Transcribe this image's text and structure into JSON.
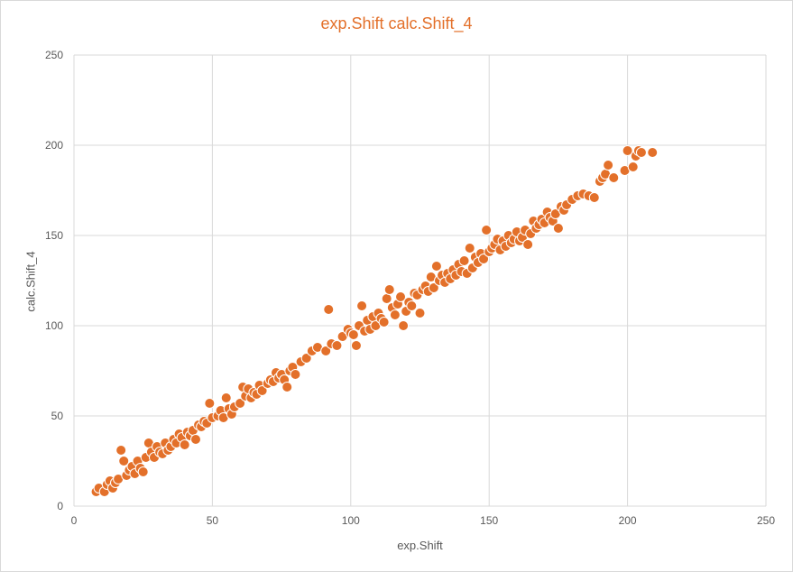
{
  "chart_data": {
    "type": "scatter",
    "title": "exp.Shift calc.Shift_4",
    "xlabel": "exp.Shift",
    "ylabel": "calc.Shift_4",
    "xlim": [
      0,
      250
    ],
    "ylim": [
      0,
      250
    ],
    "xticks": [
      "0",
      "50",
      "100",
      "150",
      "200",
      "250"
    ],
    "yticks": [
      "0",
      "50",
      "100",
      "150",
      "200",
      "250"
    ],
    "grid": true,
    "series": [
      {
        "color": "#e3702a",
        "points": [
          [
            8,
            8
          ],
          [
            9,
            10
          ],
          [
            11,
            8
          ],
          [
            12,
            12
          ],
          [
            13,
            14
          ],
          [
            14,
            10
          ],
          [
            15,
            13
          ],
          [
            16,
            15
          ],
          [
            17,
            31
          ],
          [
            18,
            25
          ],
          [
            19,
            17
          ],
          [
            20,
            20
          ],
          [
            21,
            22
          ],
          [
            22,
            18
          ],
          [
            23,
            25
          ],
          [
            24,
            21
          ],
          [
            25,
            19
          ],
          [
            26,
            27
          ],
          [
            27,
            35
          ],
          [
            28,
            30
          ],
          [
            29,
            27
          ],
          [
            30,
            33
          ],
          [
            31,
            30
          ],
          [
            32,
            29
          ],
          [
            33,
            35
          ],
          [
            34,
            31
          ],
          [
            35,
            33
          ],
          [
            36,
            37
          ],
          [
            37,
            35
          ],
          [
            38,
            40
          ],
          [
            39,
            38
          ],
          [
            40,
            34
          ],
          [
            41,
            41
          ],
          [
            42,
            39
          ],
          [
            43,
            42
          ],
          [
            44,
            37
          ],
          [
            45,
            45
          ],
          [
            46,
            44
          ],
          [
            47,
            47
          ],
          [
            48,
            46
          ],
          [
            49,
            57
          ],
          [
            50,
            49
          ],
          [
            52,
            50
          ],
          [
            53,
            53
          ],
          [
            54,
            49
          ],
          [
            55,
            60
          ],
          [
            56,
            54
          ],
          [
            57,
            51
          ],
          [
            58,
            55
          ],
          [
            60,
            57
          ],
          [
            61,
            66
          ],
          [
            62,
            61
          ],
          [
            63,
            65
          ],
          [
            64,
            60
          ],
          [
            65,
            63
          ],
          [
            66,
            62
          ],
          [
            67,
            67
          ],
          [
            68,
            64
          ],
          [
            70,
            68
          ],
          [
            71,
            70
          ],
          [
            72,
            69
          ],
          [
            73,
            74
          ],
          [
            74,
            71
          ],
          [
            75,
            73
          ],
          [
            76,
            70
          ],
          [
            77,
            66
          ],
          [
            78,
            75
          ],
          [
            79,
            77
          ],
          [
            80,
            73
          ],
          [
            82,
            80
          ],
          [
            84,
            82
          ],
          [
            86,
            86
          ],
          [
            88,
            88
          ],
          [
            91,
            86
          ],
          [
            92,
            109
          ],
          [
            93,
            90
          ],
          [
            95,
            89
          ],
          [
            97,
            94
          ],
          [
            99,
            98
          ],
          [
            100,
            96
          ],
          [
            101,
            95
          ],
          [
            102,
            89
          ],
          [
            103,
            100
          ],
          [
            104,
            111
          ],
          [
            105,
            97
          ],
          [
            106,
            103
          ],
          [
            107,
            98
          ],
          [
            108,
            105
          ],
          [
            109,
            100
          ],
          [
            110,
            107
          ],
          [
            111,
            104
          ],
          [
            112,
            102
          ],
          [
            113,
            115
          ],
          [
            114,
            120
          ],
          [
            115,
            110
          ],
          [
            116,
            106
          ],
          [
            117,
            112
          ],
          [
            118,
            116
          ],
          [
            119,
            100
          ],
          [
            120,
            108
          ],
          [
            121,
            113
          ],
          [
            122,
            111
          ],
          [
            123,
            118
          ],
          [
            124,
            117
          ],
          [
            125,
            107
          ],
          [
            126,
            120
          ],
          [
            127,
            122
          ],
          [
            128,
            119
          ],
          [
            129,
            127
          ],
          [
            130,
            121
          ],
          [
            131,
            133
          ],
          [
            132,
            125
          ],
          [
            133,
            128
          ],
          [
            134,
            124
          ],
          [
            135,
            129
          ],
          [
            136,
            126
          ],
          [
            137,
            131
          ],
          [
            138,
            128
          ],
          [
            139,
            134
          ],
          [
            140,
            130
          ],
          [
            141,
            136
          ],
          [
            142,
            129
          ],
          [
            143,
            143
          ],
          [
            144,
            132
          ],
          [
            145,
            138
          ],
          [
            146,
            135
          ],
          [
            147,
            140
          ],
          [
            148,
            137
          ],
          [
            149,
            153
          ],
          [
            150,
            141
          ],
          [
            151,
            143
          ],
          [
            152,
            145
          ],
          [
            153,
            148
          ],
          [
            154,
            142
          ],
          [
            155,
            147
          ],
          [
            156,
            144
          ],
          [
            157,
            150
          ],
          [
            158,
            146
          ],
          [
            159,
            148
          ],
          [
            160,
            152
          ],
          [
            161,
            147
          ],
          [
            162,
            149
          ],
          [
            163,
            153
          ],
          [
            164,
            145
          ],
          [
            165,
            151
          ],
          [
            166,
            158
          ],
          [
            167,
            154
          ],
          [
            168,
            156
          ],
          [
            169,
            159
          ],
          [
            170,
            157
          ],
          [
            171,
            163
          ],
          [
            172,
            160
          ],
          [
            173,
            158
          ],
          [
            174,
            162
          ],
          [
            175,
            154
          ],
          [
            176,
            166
          ],
          [
            177,
            164
          ],
          [
            178,
            167
          ],
          [
            180,
            170
          ],
          [
            182,
            172
          ],
          [
            184,
            173
          ],
          [
            186,
            172
          ],
          [
            188,
            171
          ],
          [
            190,
            180
          ],
          [
            191,
            182
          ],
          [
            192,
            184
          ],
          [
            193,
            189
          ],
          [
            195,
            182
          ],
          [
            199,
            186
          ],
          [
            200,
            197
          ],
          [
            202,
            188
          ],
          [
            203,
            194
          ],
          [
            204,
            197
          ],
          [
            205,
            196
          ],
          [
            209,
            196
          ]
        ]
      }
    ]
  }
}
